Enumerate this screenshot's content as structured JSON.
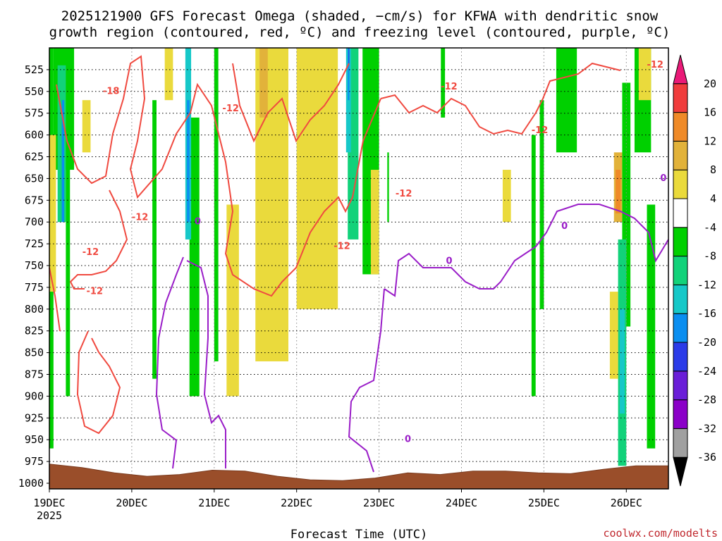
{
  "title": {
    "line1": "2025121900 GFS Forecast Omega (shaded, −cm/s) for KFWA with dendritic snow",
    "line2": "growth region (contoured, red, ºC) and freezing level (contoured, purple, ºC)"
  },
  "credit": "coolwx.com/modelts",
  "chart_data": {
    "type": "heatmap",
    "xlabel": "Forecast Time (UTC)",
    "ylabel": "Pressure (mb)",
    "x_range_days": [
      0,
      7.6
    ],
    "x_ticks": [
      {
        "day": 0,
        "label": "19DEC",
        "sublabel": "2025"
      },
      {
        "day": 1,
        "label": "20DEC"
      },
      {
        "day": 2,
        "label": "21DEC"
      },
      {
        "day": 3,
        "label": "22DEC"
      },
      {
        "day": 4,
        "label": "23DEC"
      },
      {
        "day": 5,
        "label": "24DEC"
      },
      {
        "day": 6,
        "label": "25DEC"
      },
      {
        "day": 7,
        "label": "26DEC"
      }
    ],
    "y_ticks": [
      525,
      550,
      575,
      600,
      625,
      650,
      675,
      700,
      725,
      750,
      775,
      800,
      825,
      850,
      875,
      900,
      925,
      950,
      975,
      1000
    ],
    "y_range_mb": [
      500,
      1000
    ],
    "colorbar": {
      "levels": [
        -36,
        -32,
        -28,
        -24,
        -20,
        -16,
        -12,
        -8,
        -4,
        4,
        8,
        12,
        16,
        20
      ],
      "colors": [
        "#000000",
        "#a0a0a0",
        "#8b00c8",
        "#6a1ed8",
        "#2b3be8",
        "#0a8ef0",
        "#16c8c8",
        "#12d27a",
        "#00d000",
        "#ffffff",
        "#eada3c",
        "#e2b23a",
        "#ef8a28",
        "#f03c3c",
        "#ea1a78"
      ]
    },
    "shading": [
      {
        "color": "#00d000",
        "cells": [
          [
            0.0,
            500,
            0.05,
            960
          ],
          [
            0.05,
            500,
            0.3,
            640
          ],
          [
            0.2,
            500,
            0.25,
            900
          ],
          [
            1.25,
            560,
            1.3,
            880
          ],
          [
            1.7,
            580,
            1.82,
            900
          ],
          [
            2.0,
            500,
            2.05,
            860
          ],
          [
            3.8,
            500,
            4.0,
            760
          ],
          [
            4.1,
            620,
            4.12,
            700
          ],
          [
            4.75,
            500,
            4.8,
            580
          ],
          [
            5.85,
            600,
            5.9,
            900
          ],
          [
            5.95,
            560,
            6.0,
            800
          ],
          [
            6.15,
            500,
            6.4,
            620
          ],
          [
            7.1,
            500,
            7.3,
            620
          ],
          [
            7.25,
            680,
            7.35,
            960
          ],
          [
            7.6,
            500,
            7.7,
            560
          ],
          [
            7.65,
            720,
            7.8,
            940
          ],
          [
            8.05,
            880,
            8.1,
            920
          ],
          [
            6.95,
            540,
            7.05,
            820
          ]
        ]
      },
      {
        "color": "#12d27a",
        "cells": [
          [
            0.1,
            520,
            0.2,
            700
          ],
          [
            3.62,
            500,
            3.75,
            720
          ],
          [
            6.9,
            720,
            7.0,
            980
          ]
        ]
      },
      {
        "color": "#16c8c8",
        "cells": [
          [
            1.65,
            500,
            1.72,
            720
          ],
          [
            3.6,
            500,
            3.66,
            620
          ],
          [
            6.92,
            800,
            6.98,
            920
          ],
          [
            7.8,
            500,
            7.88,
            560
          ]
        ]
      },
      {
        "color": "#0a8ef0",
        "cells": [
          [
            0.15,
            560,
            0.18,
            700
          ],
          [
            1.67,
            560,
            1.7,
            700
          ],
          [
            3.62,
            500,
            3.64,
            560
          ],
          [
            7.8,
            500,
            7.84,
            520
          ]
        ]
      },
      {
        "color": "#2b3be8",
        "cells": [
          [
            3.63,
            500,
            3.64,
            520
          ]
        ]
      },
      {
        "color": "#eada3c",
        "cells": [
          [
            0.0,
            600,
            0.08,
            780
          ],
          [
            0.4,
            560,
            0.5,
            620
          ],
          [
            1.4,
            500,
            1.5,
            560
          ],
          [
            2.15,
            680,
            2.3,
            900
          ],
          [
            2.5,
            500,
            2.9,
            860
          ],
          [
            3.0,
            500,
            3.5,
            800
          ],
          [
            3.9,
            640,
            4.0,
            760
          ],
          [
            5.5,
            640,
            5.6,
            700
          ],
          [
            6.8,
            780,
            6.9,
            880
          ],
          [
            7.15,
            500,
            7.3,
            560
          ],
          [
            7.85,
            560,
            8.1,
            660
          ]
        ]
      },
      {
        "color": "#e2b23a",
        "cells": [
          [
            2.55,
            500,
            2.65,
            580
          ],
          [
            6.85,
            620,
            6.95,
            700
          ],
          [
            7.9,
            560,
            8.0,
            620
          ]
        ]
      },
      {
        "color": "#ef8a28",
        "cells": [
          [
            6.87,
            640,
            6.93,
            690
          ],
          [
            7.95,
            500,
            8.05,
            560
          ]
        ]
      }
    ],
    "surface_terrain_mb": [
      978,
      982,
      988,
      992,
      990,
      985,
      986,
      992,
      996,
      997,
      994,
      988,
      990,
      986,
      986,
      988,
      989,
      984,
      980,
      980
    ],
    "dendritic_contours": [
      {
        "label": "-18",
        "label_day": 0.75,
        "label_mb": 550
      },
      {
        "label": "-12",
        "label_day": 2.2,
        "label_mb": 570
      },
      {
        "label": "-12",
        "label_day": 1.1,
        "label_mb": 695
      },
      {
        "label": "-12",
        "label_day": 0.5,
        "label_mb": 735
      },
      {
        "label": "-12",
        "label_day": 0.55,
        "label_mb": 780
      },
      {
        "label": "-12",
        "label_day": 3.55,
        "label_mb": 728
      },
      {
        "label": "-12",
        "label_day": 4.3,
        "label_mb": 668
      },
      {
        "label": "-12",
        "label_day": 4.85,
        "label_mb": 545
      },
      {
        "label": "-12",
        "label_day": 5.95,
        "label_mb": 595
      },
      {
        "label": "-12",
        "label_day": 7.35,
        "label_mb": 520
      }
    ],
    "freezing_contours": [
      {
        "label": "0",
        "label_day": 1.8,
        "label_mb": 700
      },
      {
        "label": "0",
        "label_day": 4.85,
        "label_mb": 745
      },
      {
        "label": "0",
        "label_day": 4.35,
        "label_mb": 950
      },
      {
        "label": "0",
        "label_day": 6.25,
        "label_mb": 705
      },
      {
        "label": "0",
        "label_day": 7.45,
        "label_mb": 650
      }
    ]
  }
}
